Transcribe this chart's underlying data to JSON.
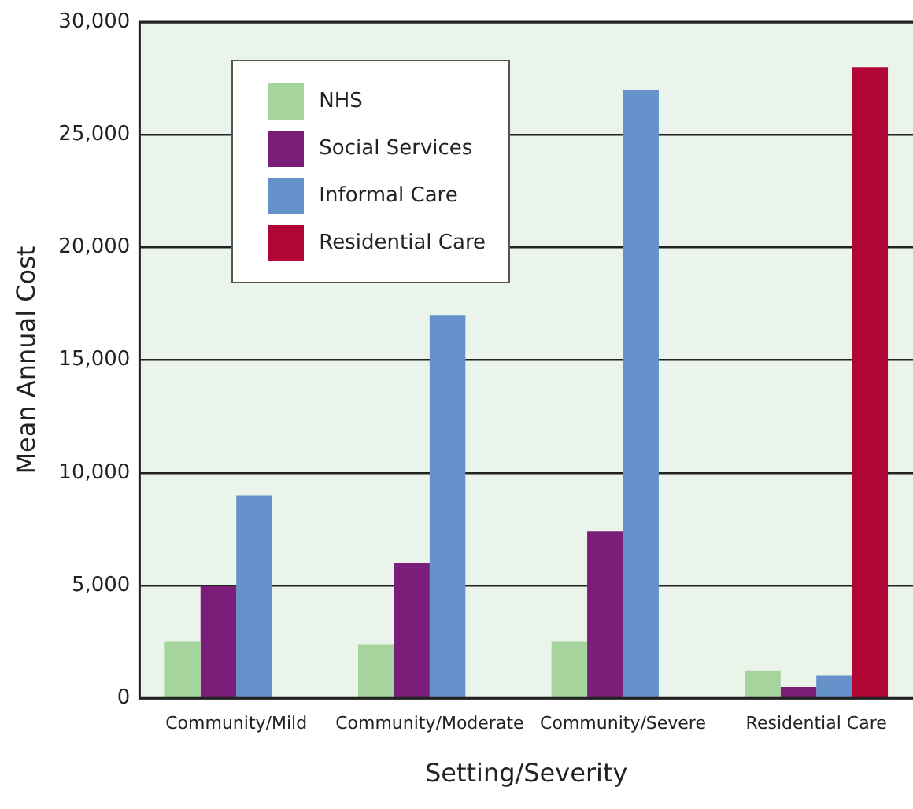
{
  "chart_data": {
    "type": "bar",
    "xlabel": "Setting/Severity",
    "ylabel": "Mean Annual Cost",
    "categories": [
      "Community/Mild",
      "Community/Moderate",
      "Community/Severe",
      "Residential Care"
    ],
    "series": [
      {
        "name": "NHS",
        "color": "#a6d49d",
        "values": [
          2500,
          2400,
          2500,
          1200
        ]
      },
      {
        "name": "Social Services",
        "color": "#7b1e7a",
        "values": [
          5000,
          6000,
          7400,
          500
        ]
      },
      {
        "name": "Informal Care",
        "color": "#6592cb",
        "values": [
          9000,
          17000,
          27000,
          1000
        ]
      },
      {
        "name": "Residential Care",
        "color": "#b10535",
        "values": [
          null,
          null,
          null,
          28000
        ]
      }
    ],
    "ylim": [
      0,
      30000
    ],
    "yticks": [
      0,
      {
        "value": 5000,
        "label": "5,000"
      },
      {
        "value": 10000,
        "label": "10,000"
      },
      {
        "value": 15000,
        "label": "15,000"
      },
      {
        "value": 20000,
        "label": "20,000"
      },
      {
        "value": 25000,
        "label": "25,000"
      },
      {
        "value": 30000,
        "label": "30,000"
      }
    ],
    "grid": "y",
    "legend": "top left"
  }
}
